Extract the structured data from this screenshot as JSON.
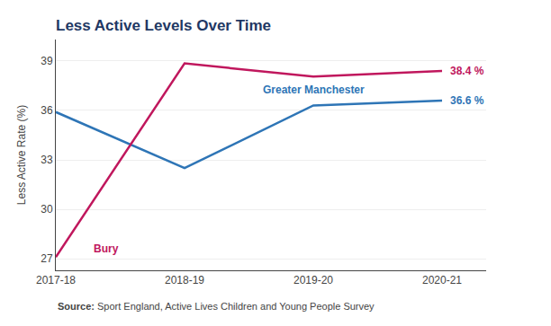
{
  "chart_data": {
    "type": "line",
    "title": "Less Active Levels Over Time",
    "y_label": "Less Active Rate (%)",
    "source": "Source: Sport England, Active Lives Children and Young People Survey",
    "categories": [
      "2017-18",
      "2018-19",
      "2019-20",
      "2020-21"
    ],
    "series": [
      {
        "name": "Greater Manchester",
        "color": "#2E75B6",
        "values": [
          35.9,
          32.5,
          36.3,
          36.6
        ],
        "value_labels": [
          null,
          null,
          null,
          "36.6 %"
        ]
      },
      {
        "name": "Bury",
        "color": "#C0175D",
        "values": [
          27.1,
          38.85,
          38.05,
          38.4
        ],
        "value_labels": [
          null,
          null,
          null,
          "38.4 %"
        ]
      }
    ],
    "data_labels": true,
    "ylim": [
      26.3,
      40.3
    ],
    "yticks": [
      27,
      30,
      33,
      36,
      39
    ],
    "grid": true
  }
}
